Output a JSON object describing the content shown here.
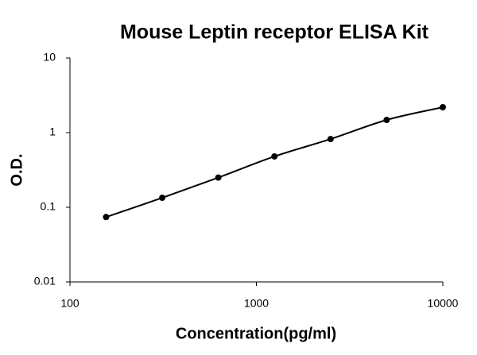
{
  "chart_data": {
    "type": "scatter",
    "title": "Mouse Leptin receptor ELISA Kit",
    "x_label": "Concentration(pg/ml)",
    "y_label": "O.D.",
    "x": [
      156.25,
      312.5,
      625,
      1250,
      2500,
      5000,
      10000
    ],
    "values": [
      0.074,
      0.134,
      0.25,
      0.48,
      0.82,
      1.48,
      2.19
    ],
    "color": "#000000",
    "xscale": "log",
    "yscale": "log",
    "xlim": [
      100,
      10000
    ],
    "ylim": [
      0.01,
      10
    ],
    "xticks": [
      100,
      1000,
      10000
    ],
    "yticks": [
      0.01,
      0.1,
      1,
      10
    ],
    "grid": false
  }
}
